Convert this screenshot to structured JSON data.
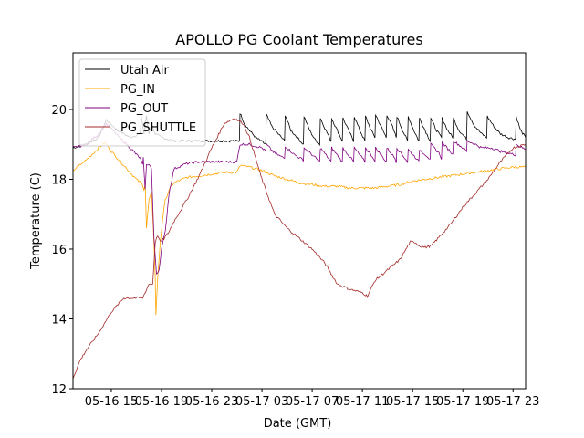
{
  "chart_data": {
    "type": "line",
    "title": "APOLLO PG Coolant Temperatures",
    "xlabel": "Date (GMT)",
    "ylabel": "Temperature (C)",
    "x_units": "hours since 05-16 00:00 GMT",
    "xlim": [
      11.95,
      48.0
    ],
    "ylim": [
      12.0,
      21.62
    ],
    "grid": false,
    "legend_position": "top-left",
    "x_ticks": [
      {
        "value": 15,
        "label": "05-16 15"
      },
      {
        "value": 19,
        "label": "05-16 19"
      },
      {
        "value": 23,
        "label": "05-16 23"
      },
      {
        "value": 27,
        "label": "05-17 03"
      },
      {
        "value": 31,
        "label": "05-17 07"
      },
      {
        "value": 35,
        "label": "05-17 11"
      },
      {
        "value": 39,
        "label": "05-17 15"
      },
      {
        "value": 43,
        "label": "05-17 19"
      },
      {
        "value": 47,
        "label": "05-17 23"
      }
    ],
    "y_ticks": [
      {
        "value": 12,
        "label": "12"
      },
      {
        "value": 14,
        "label": "14"
      },
      {
        "value": 16,
        "label": "16"
      },
      {
        "value": 18,
        "label": "18"
      },
      {
        "value": 20,
        "label": "20"
      }
    ],
    "series": [
      {
        "name": "Utah Air",
        "color": "#000000",
        "x": [
          11.95,
          13.0,
          14.0,
          14.6,
          15.5,
          16.5,
          17.3,
          17.4,
          17.6,
          17.8,
          18.0,
          18.2,
          18.5,
          19.0,
          20.0,
          21.0,
          22.0,
          23.0,
          24.0,
          25.2,
          25.25,
          25.6,
          26.0,
          26.5,
          26.9,
          27.3,
          27.35,
          27.8,
          28.3,
          28.8,
          28.85,
          29.3,
          29.8,
          30.3,
          30.35,
          30.8,
          31.2,
          31.6,
          31.65,
          32.1,
          32.5,
          32.55,
          33.0,
          33.4,
          33.45,
          33.9,
          34.3,
          34.35,
          34.8,
          35.2,
          35.25,
          35.7,
          36.0,
          36.05,
          36.5,
          36.9,
          36.95,
          37.4,
          37.7,
          37.75,
          38.2,
          38.6,
          38.65,
          39.1,
          39.5,
          39.55,
          40.0,
          40.4,
          40.45,
          40.9,
          41.3,
          41.35,
          41.8,
          42.2,
          42.25,
          42.7,
          43.3,
          43.35,
          43.9,
          44.5,
          44.9,
          44.95,
          45.5,
          46.0,
          46.6,
          47.2,
          47.25,
          47.6,
          48.0
        ],
        "y": [
          18.9,
          19.0,
          19.2,
          19.7,
          19.4,
          19.2,
          19.3,
          19.8,
          19.3,
          19.8,
          19.3,
          19.6,
          19.3,
          19.2,
          19.1,
          19.1,
          19.1,
          19.1,
          19.1,
          19.1,
          19.9,
          19.6,
          19.4,
          19.2,
          19.1,
          19.0,
          19.85,
          19.5,
          19.3,
          19.1,
          19.85,
          19.4,
          19.2,
          19.0,
          19.8,
          19.4,
          19.15,
          19.0,
          19.75,
          19.4,
          19.1,
          19.75,
          19.4,
          19.1,
          19.75,
          19.4,
          19.1,
          19.8,
          19.4,
          19.1,
          19.8,
          19.4,
          19.2,
          19.85,
          19.5,
          19.2,
          19.85,
          19.5,
          19.2,
          19.8,
          19.4,
          19.1,
          19.8,
          19.4,
          19.1,
          19.75,
          19.4,
          19.1,
          19.75,
          19.4,
          19.2,
          19.75,
          19.4,
          19.2,
          19.75,
          19.4,
          19.15,
          19.95,
          19.55,
          19.3,
          19.2,
          19.8,
          19.5,
          19.3,
          19.2,
          19.15,
          19.8,
          19.4,
          19.2
        ]
      },
      {
        "name": "PG_IN",
        "color": "#ffa500",
        "x": [
          11.95,
          13.0,
          14.0,
          14.5,
          15.0,
          16.0,
          17.0,
          17.5,
          17.6,
          17.7,
          17.8,
          18.0,
          18.2,
          18.4,
          18.5,
          18.55,
          18.7,
          18.9,
          19.1,
          19.3,
          19.6,
          20.0,
          21.0,
          22.0,
          23.0,
          24.0,
          25.0,
          25.3,
          26.0,
          27.0,
          28.0,
          29.0,
          30.0,
          31.0,
          32.0,
          33.0,
          34.0,
          35.0,
          36.0,
          37.0,
          38.0,
          39.0,
          40.0,
          41.0,
          42.0,
          43.0,
          44.0,
          45.0,
          46.0,
          47.0,
          48.0
        ],
        "y": [
          18.25,
          18.55,
          18.9,
          19.05,
          18.8,
          18.4,
          18.0,
          17.85,
          17.7,
          17.9,
          16.6,
          17.4,
          17.6,
          16.2,
          15.2,
          14.1,
          15.2,
          16.2,
          16.9,
          17.4,
          17.7,
          17.9,
          18.05,
          18.1,
          18.15,
          18.2,
          18.2,
          18.4,
          18.35,
          18.25,
          18.1,
          18.0,
          17.9,
          17.85,
          17.8,
          17.8,
          17.75,
          17.75,
          17.75,
          17.8,
          17.85,
          17.95,
          18.0,
          18.05,
          18.1,
          18.15,
          18.2,
          18.25,
          18.3,
          18.35,
          18.35
        ]
      },
      {
        "name": "PG_OUT",
        "color": "#800080",
        "x": [
          11.95,
          13.0,
          14.0,
          14.6,
          15.5,
          16.5,
          17.3,
          17.5,
          17.55,
          17.7,
          17.8,
          18.0,
          18.2,
          18.4,
          18.6,
          18.8,
          19.0,
          19.3,
          19.6,
          20.0,
          21.0,
          22.0,
          23.0,
          24.0,
          25.0,
          25.25,
          26.0,
          27.0,
          27.3,
          27.35,
          28.0,
          28.8,
          28.85,
          29.6,
          30.3,
          30.35,
          31.0,
          31.6,
          31.65,
          32.3,
          32.5,
          32.55,
          33.2,
          33.4,
          33.45,
          34.1,
          34.3,
          34.35,
          35.0,
          35.2,
          35.25,
          35.9,
          36.0,
          36.05,
          36.7,
          36.9,
          36.95,
          37.6,
          37.7,
          37.75,
          38.4,
          38.6,
          38.65,
          39.3,
          39.5,
          39.55,
          40.2,
          40.4,
          40.45,
          41.1,
          41.3,
          41.35,
          42.0,
          42.2,
          42.25,
          43.0,
          43.3,
          43.35,
          44.0,
          44.5,
          44.9,
          45.3,
          46.0,
          47.2,
          47.25,
          48.0
        ],
        "y": [
          18.9,
          19.0,
          19.3,
          19.6,
          19.25,
          18.9,
          18.6,
          18.4,
          18.6,
          17.7,
          18.4,
          18.45,
          18.3,
          16.3,
          15.3,
          15.4,
          16.0,
          16.5,
          17.6,
          18.3,
          18.45,
          18.5,
          18.5,
          18.5,
          18.5,
          19.0,
          19.0,
          18.9,
          18.8,
          19.0,
          18.75,
          18.6,
          18.95,
          18.7,
          18.55,
          18.9,
          18.7,
          18.5,
          18.9,
          18.6,
          18.5,
          18.9,
          18.6,
          18.5,
          18.9,
          18.6,
          18.5,
          18.9,
          18.6,
          18.5,
          18.9,
          18.6,
          18.5,
          18.9,
          18.6,
          18.5,
          18.9,
          18.6,
          18.5,
          18.9,
          18.6,
          18.5,
          18.85,
          18.6,
          18.5,
          18.85,
          18.65,
          18.55,
          19.0,
          18.75,
          18.6,
          19.05,
          18.8,
          18.7,
          19.1,
          18.9,
          18.8,
          19.1,
          19.0,
          18.9,
          18.9,
          18.9,
          18.8,
          18.7,
          19.0,
          18.85
        ]
      },
      {
        "name": "PG_SHUTTLE",
        "color": "#a52a2a",
        "x": [
          11.95,
          12.5,
          13.0,
          14.0,
          15.0,
          16.0,
          16.5,
          17.5,
          18.0,
          18.3,
          18.5,
          18.7,
          18.9,
          19.2,
          19.6,
          20.0,
          21.0,
          22.0,
          23.0,
          24.0,
          24.8,
          25.5,
          26.0,
          26.5,
          27.0,
          27.5,
          28.0,
          29.0,
          30.0,
          31.0,
          32.0,
          32.5,
          33.0,
          34.0,
          35.0,
          35.4,
          36.0,
          37.0,
          38.0,
          38.8,
          39.2,
          39.5,
          40.0,
          40.5,
          41.0,
          42.0,
          43.0,
          44.0,
          45.0,
          46.0,
          47.0,
          48.0
        ],
        "y": [
          12.3,
          12.8,
          13.1,
          13.6,
          14.2,
          14.6,
          14.6,
          14.6,
          15.0,
          15.0,
          16.2,
          16.4,
          16.2,
          16.3,
          16.5,
          16.8,
          17.4,
          18.1,
          18.9,
          19.6,
          19.75,
          19.6,
          19.2,
          18.6,
          18.0,
          17.5,
          17.0,
          16.6,
          16.3,
          16.0,
          15.6,
          15.3,
          15.0,
          14.85,
          14.75,
          14.65,
          15.1,
          15.4,
          15.7,
          16.2,
          16.2,
          16.1,
          16.05,
          16.1,
          16.3,
          16.7,
          17.2,
          17.6,
          18.0,
          18.5,
          18.9,
          19.0
        ]
      }
    ]
  }
}
